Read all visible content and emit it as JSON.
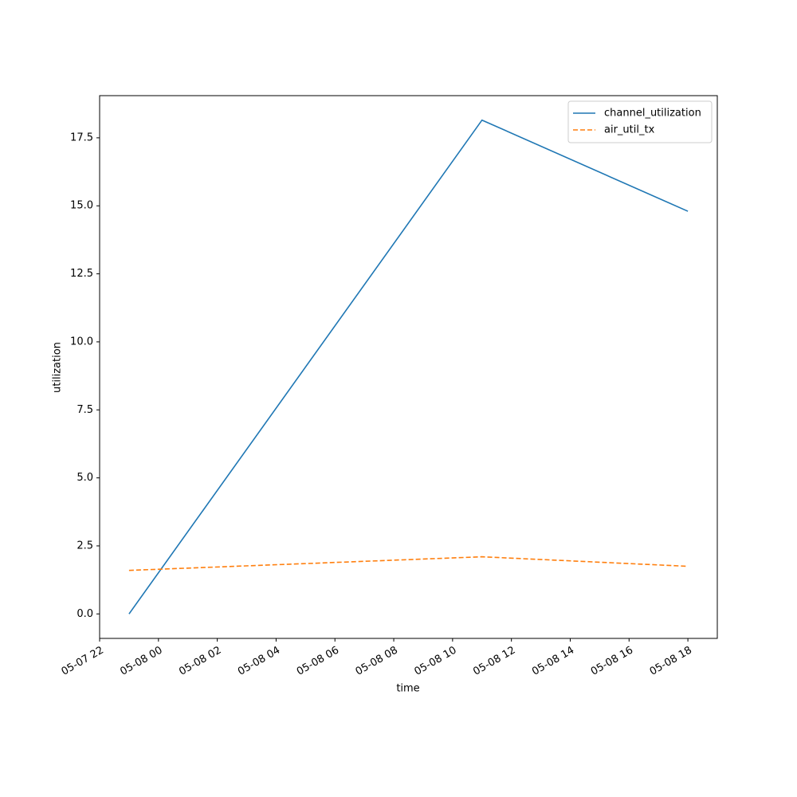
{
  "chart_data": {
    "type": "line",
    "x_label": "time",
    "y_label": "utilization",
    "x": [
      "05-07 23",
      "05-08 11",
      "05-08 18"
    ],
    "series": [
      {
        "name": "channel_utilization",
        "color": "#1f77b4",
        "linestyle": "solid",
        "values": [
          0,
          18.15,
          14.8
        ]
      },
      {
        "name": "air_util_tx",
        "color": "#ff7f0e",
        "linestyle": "dashed",
        "values": [
          1.6,
          2.1,
          1.75
        ]
      }
    ],
    "xlim": [
      "05-07 22",
      "05-08 19"
    ],
    "xticks": [
      "05-07 22",
      "05-08 00",
      "05-08 02",
      "05-08 04",
      "05-08 06",
      "05-08 08",
      "05-08 10",
      "05-08 12",
      "05-08 14",
      "05-08 16",
      "05-08 18"
    ],
    "ylim": [
      -0.9,
      19.05
    ],
    "yticks": [
      {
        "value": 0,
        "label": "0.0"
      },
      2.5,
      {
        "value": 5,
        "label": "5.0"
      },
      7.5,
      {
        "value": 10,
        "label": "10.0"
      },
      12.5,
      {
        "value": 15,
        "label": "15.0"
      },
      17.5
    ],
    "grid": false,
    "legend": "upper right"
  }
}
